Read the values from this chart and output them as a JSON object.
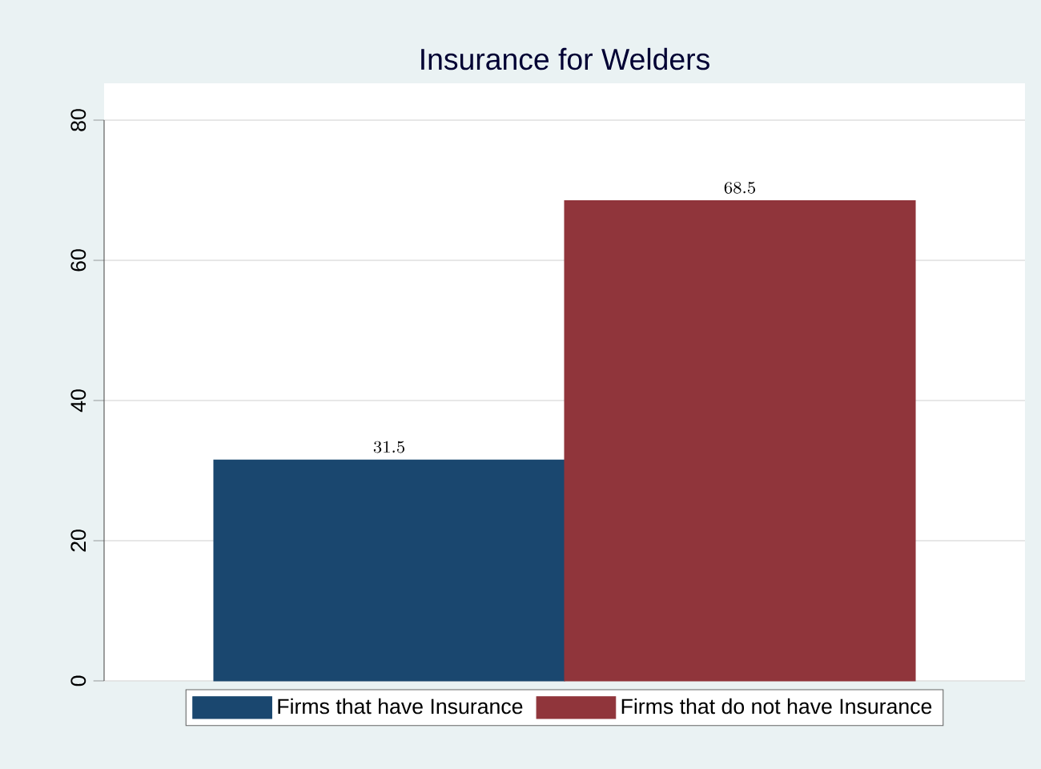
{
  "chart_data": {
    "type": "bar",
    "title": "Insurance for Welders",
    "categories": [
      null
    ],
    "series": [
      {
        "name": "Firms that have Insurance",
        "color": "#1a476f",
        "values": [
          31.5
        ]
      },
      {
        "name": "Firms that do not have Insurance",
        "color": "#90353b",
        "values": [
          68.5
        ]
      }
    ],
    "ylim": [
      0,
      80
    ],
    "yticks": [
      0,
      20,
      40,
      60,
      80
    ],
    "grid": "y",
    "legend": "bottom",
    "data_labels": true
  }
}
